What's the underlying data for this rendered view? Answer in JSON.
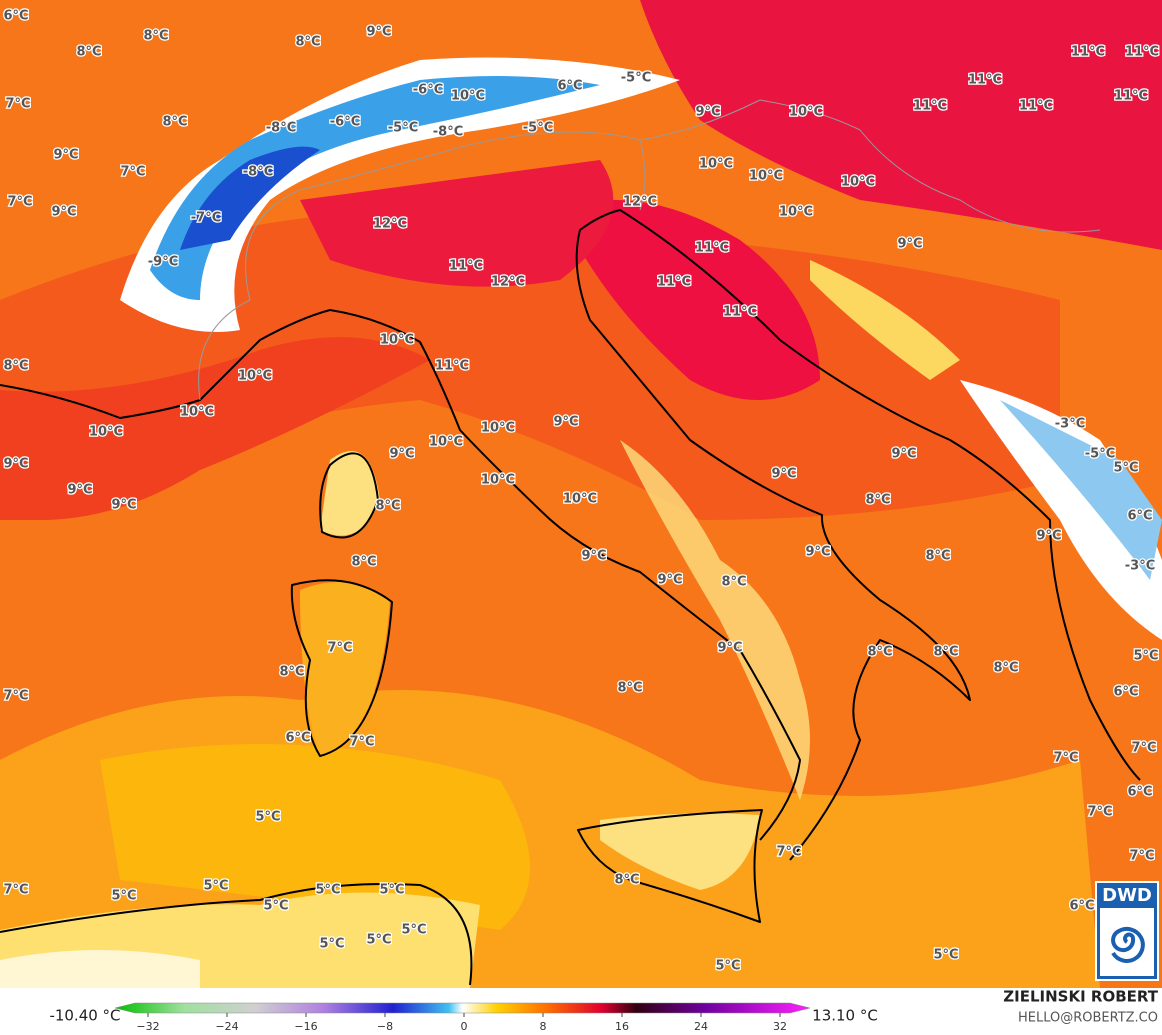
{
  "map": {
    "labels": [
      "6°C",
      "8°C",
      "8°C",
      "8°C",
      "9°C",
      "11°C",
      "11°C",
      "7°C",
      "8°C",
      "-6°C",
      "10°C",
      "6°C",
      "-5°C",
      "11°C",
      "11°C",
      "11°C",
      "11°C",
      "9°C",
      "-8°C",
      "-6°C",
      "-5°C",
      "-8°C",
      "-5°C",
      "9°C",
      "10°C",
      "7°C",
      "-8°C",
      "10°C",
      "10°C",
      "10°C",
      "7°C",
      "9°C",
      "-7°C",
      "12°C",
      "12°C",
      "10°C",
      "9°C",
      "11°C",
      "-9°C",
      "11°C",
      "12°C",
      "11°C",
      "11°C",
      "10°C",
      "8°C",
      "11°C",
      "10°C",
      "10°C",
      "10°C",
      "10°C",
      "10°C",
      "9°C",
      "-3°C",
      "9°C",
      "9°C",
      "9°C",
      "-5°C",
      "9°C",
      "9°C",
      "10°C",
      "9°C",
      "5°C",
      "8°C",
      "10°C",
      "8°C",
      "6°C",
      "9°C",
      "9°C",
      "9°C",
      "8°C",
      "8°C",
      "9°C",
      "8°C",
      "-3°C",
      "7°C",
      "8°C",
      "9°C",
      "8°C",
      "8°C",
      "8°C",
      "5°C",
      "7°C",
      "8°C",
      "6°C",
      "6°C",
      "7°C",
      "7°C",
      "7°C",
      "7°C",
      "5°C",
      "6°C",
      "7°C",
      "7°C",
      "8°C",
      "7°C",
      "5°C",
      "5°C",
      "5°C",
      "5°C",
      "5°C",
      "6°C",
      "5°C",
      "5°C",
      "5°C",
      "5°C",
      "5°C"
    ]
  },
  "legend": {
    "min_label": "-10.40 °C",
    "max_label": "13.10 °C",
    "ticks": [
      {
        "value": -32,
        "label": "−32"
      },
      {
        "value": -24,
        "label": "−24"
      },
      {
        "value": -16,
        "label": "−16"
      },
      {
        "value": -8,
        "label": "−8"
      },
      0,
      8,
      16,
      24,
      32
    ]
  },
  "credit": {
    "name": "ZIELINSKI ROBERT",
    "email": "HELLO@ROBERTZ.CO"
  },
  "logo": {
    "text": "DWD"
  }
}
